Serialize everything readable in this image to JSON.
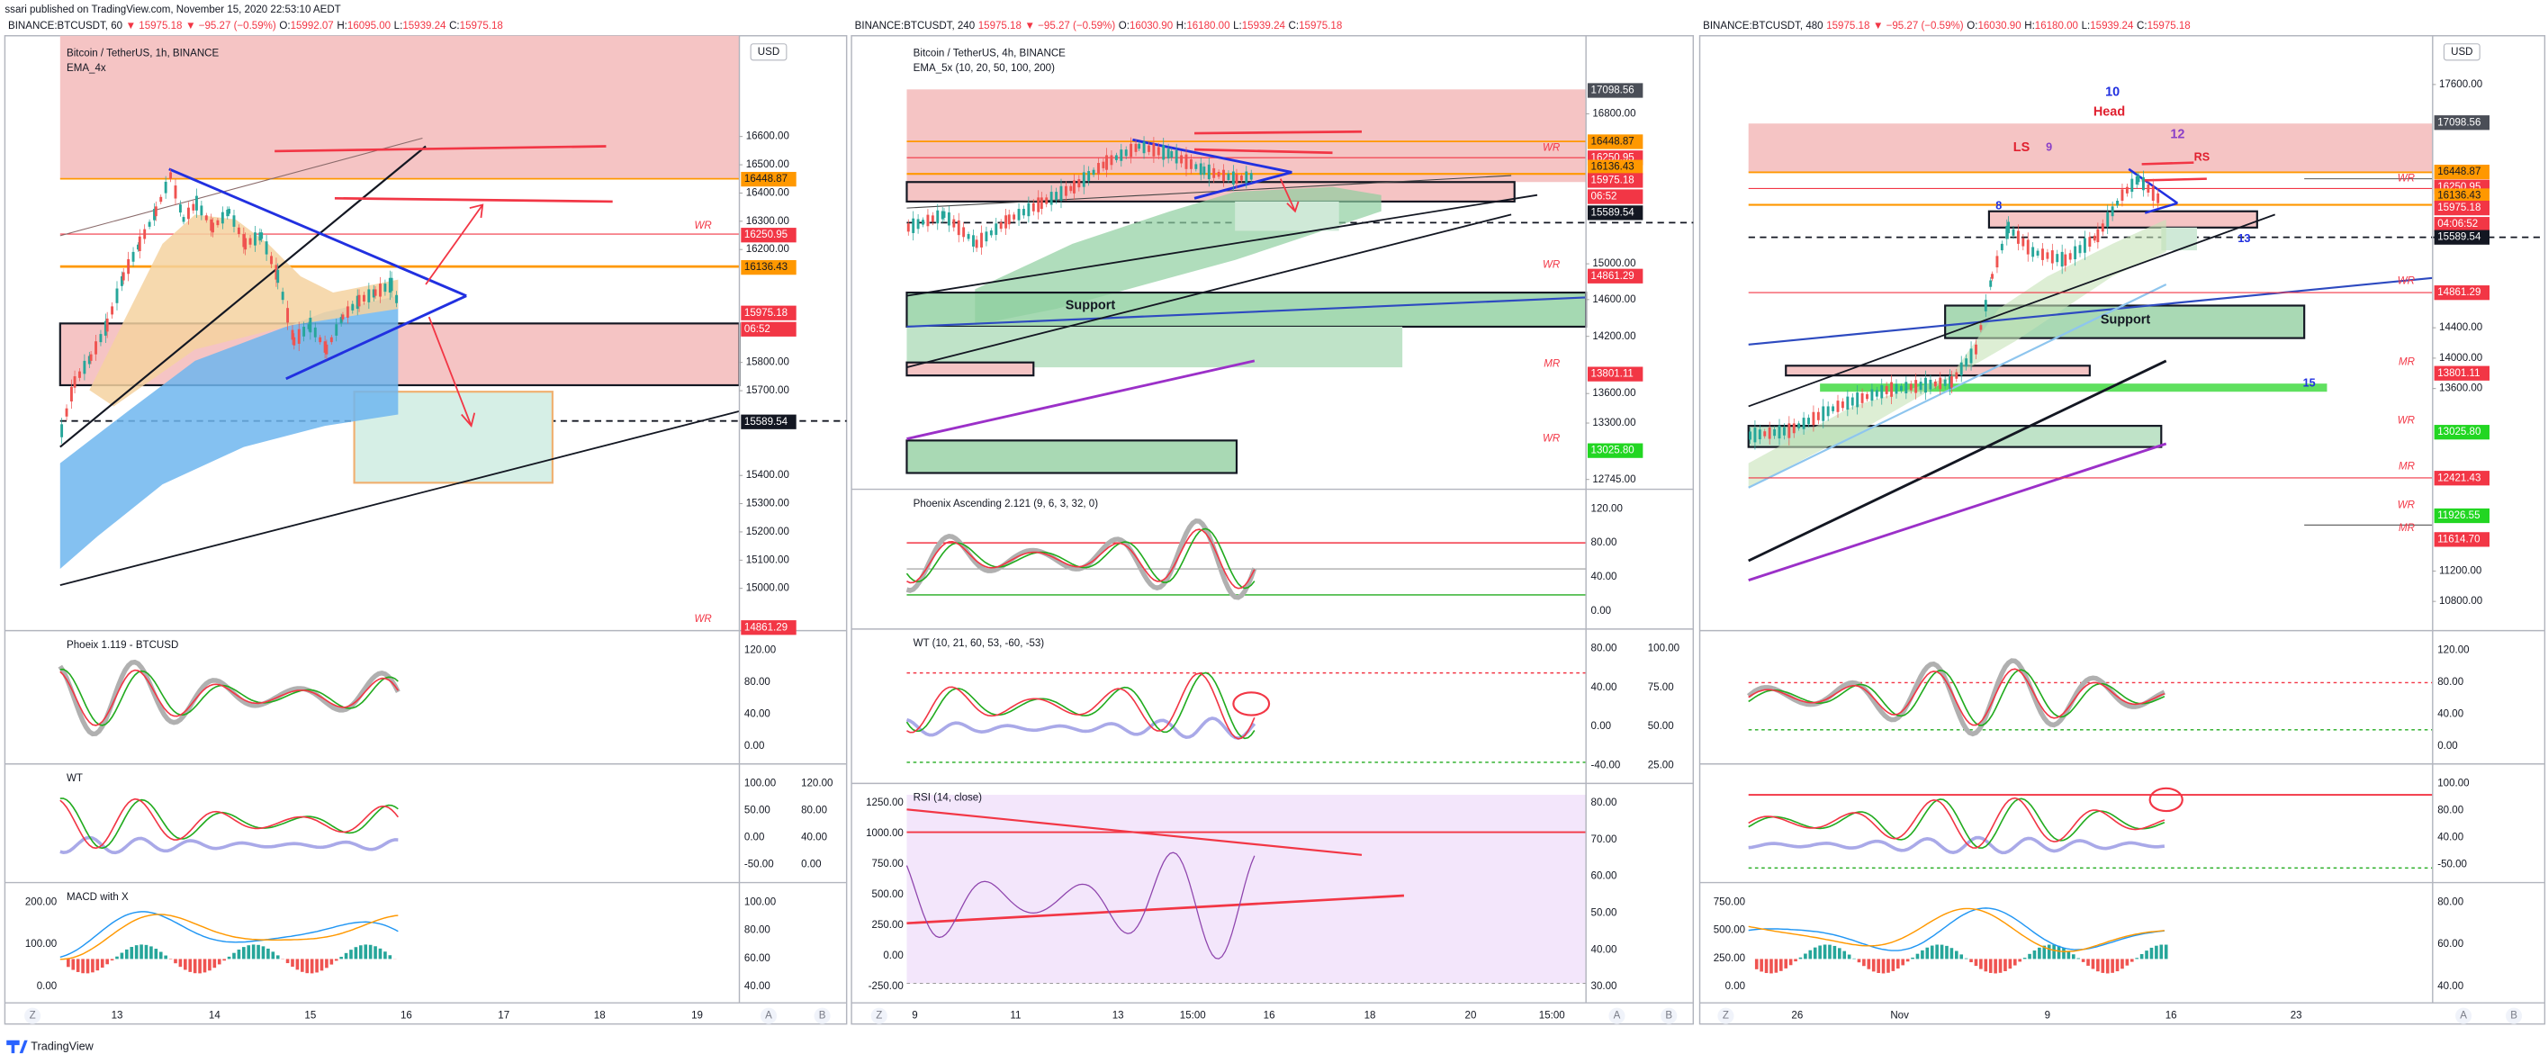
{
  "header": {
    "published": "ssari published on TradingView.com, November 15, 2020 22:53:10 AEDT"
  },
  "panels": [
    {
      "symbol": "BINANCE:BTCUSDT, 60",
      "price": "▼ 15975.18",
      "change": "▼ −95.27 (−0.59%)",
      "ohlc": [
        [
          "O:",
          "15992.07"
        ],
        [
          "H:",
          "16095.00"
        ],
        [
          "L:",
          "15939.24"
        ],
        [
          "C:",
          "15975.18"
        ]
      ],
      "legend": [
        "Bitcoin / TetherUS, 1h, BINANCE",
        "EMA_4x"
      ],
      "currency": "USD",
      "ticks": [
        {
          "value": 16600,
          "label": "16600.00"
        },
        {
          "value": 16500,
          "label": "16500.00"
        },
        {
          "value": 16400,
          "label": "16400.00"
        },
        {
          "value": 16300,
          "label": "16300.00"
        },
        {
          "value": 16200,
          "label": "16200.00"
        },
        {
          "value": 15800,
          "label": "15800.00"
        },
        {
          "value": 15700,
          "label": "15700.00"
        },
        {
          "value": 15400,
          "label": "15400.00"
        },
        {
          "value": 15300,
          "label": "15300.00"
        },
        {
          "value": 15200,
          "label": "15200.00"
        },
        {
          "value": 15100,
          "label": "15100.00"
        },
        {
          "value": 15000,
          "label": "15000.00"
        }
      ],
      "log_scale": false,
      "tags": [
        {
          "value": 16448.87,
          "label": "16448.87",
          "color": "#ff9800"
        },
        {
          "value": 16250.95,
          "label": "16250.95",
          "color": "#f23645"
        },
        {
          "value": 16136.43,
          "label": "16136.43",
          "color": "#ff9800"
        },
        {
          "value": 15975.18,
          "label": "15975.18",
          "color": "#f23645",
          "countdown": "06:52"
        },
        {
          "value": 15589.54,
          "label": "15589.54",
          "color": "#131722"
        },
        {
          "value": 14861.29,
          "label": "14861.29",
          "color": "#f23645"
        }
      ],
      "level_labels": [
        "WR",
        "WR"
      ],
      "annotations": [],
      "subpanes": [
        {
          "title": "Phoeix 1.119 - BTCUSD",
          "ticks": [
            "120.00",
            "80.00",
            "40.00",
            "0.00"
          ]
        },
        {
          "title": "WT",
          "ticks": [
            "100.00",
            "50.00",
            "0.00",
            "-50.00"
          ],
          "ticks_2": [
            "120.00",
            "80.00",
            "40.00",
            "0.00"
          ]
        },
        {
          "title": "MACD with X",
          "inner_ticks": [
            "200.00",
            "100.00",
            "0.00"
          ],
          "ticks": [
            "100.00",
            "80.00",
            "60.00",
            "40.00"
          ]
        }
      ],
      "xticks": [
        13,
        14,
        15,
        16,
        17,
        18,
        19
      ],
      "corners": [
        "Z",
        "A",
        "B"
      ]
    },
    {
      "symbol": "BINANCE:BTCUSDT, 240",
      "price": "15975.18",
      "change": "▼ −95.27 (−0.59%)",
      "ohlc": [
        [
          "O:",
          "16030.90"
        ],
        [
          "H:",
          "16180.00"
        ],
        [
          "L:",
          "15939.24"
        ],
        [
          "C:",
          "15975.18"
        ]
      ],
      "legend": [
        "Bitcoin / TetherUS, 4h, BINANCE",
        "EMA_5x (10, 20, 50, 100, 200)"
      ],
      "ticks": [
        {
          "value": 16800,
          "label": "16800.00"
        },
        {
          "value": 15000,
          "label": "15000.00"
        },
        {
          "value": 14600,
          "label": "14600.00"
        },
        {
          "value": 14200,
          "label": "14200.00"
        },
        {
          "value": 13600,
          "label": "13600.00"
        },
        {
          "value": 13300,
          "label": "13300.00"
        },
        {
          "value": 12745,
          "label": "12745.00"
        }
      ],
      "log_scale": true,
      "tags": [
        {
          "value": 17098.56,
          "label": "17098.56",
          "color": "#4a4e57"
        },
        {
          "value": 16448.87,
          "label": "16448.87",
          "color": "#ff9800"
        },
        {
          "value": 16250.95,
          "label": "16250.95",
          "color": "#f23645"
        },
        {
          "value": 16136.43,
          "label": "16136.43",
          "color": "#ff9800"
        },
        {
          "value": 15975.18,
          "label": "15975.18",
          "color": "#f23645",
          "countdown": "06:52"
        },
        {
          "value": 15589.54,
          "label": "15589.54",
          "color": "#131722"
        },
        {
          "value": 14861.29,
          "label": "14861.29",
          "color": "#f23645"
        },
        {
          "value": 13801.11,
          "label": "13801.11",
          "color": "#f23645"
        },
        {
          "value": 13025.8,
          "label": "13025.80",
          "color": "#22d622"
        }
      ],
      "level_labels": [
        "WR",
        "WR",
        "MR",
        "WR"
      ],
      "annotations": [
        "Support"
      ],
      "subpanes": [
        {
          "title": "Phoenix Ascending 2.121 (9, 6, 3, 32, 0)",
          "ticks": [
            "120.00",
            "80.00",
            "40.00",
            "0.00"
          ]
        },
        {
          "title": "WT (10, 21, 60, 53, -60, -53)",
          "ticks": [
            "80.00",
            "40.00",
            "0.00",
            "-40.00"
          ],
          "ticks_2": [
            "100.00",
            "75.00",
            "50.00",
            "25.00"
          ]
        },
        {
          "title": "RSI (14, close)",
          "inner_ticks": [
            "1250.00",
            "1000.00",
            "750.00",
            "500.00",
            "250.00",
            "0.00",
            "-250.00"
          ],
          "ticks": [
            "80.00",
            "70.00",
            "60.00",
            "50.00",
            "40.00",
            "30.00"
          ]
        }
      ],
      "xticks": [
        9,
        11,
        13,
        "15:00",
        16,
        18,
        20,
        "15:00"
      ],
      "corners": [
        "Z",
        "A",
        "B"
      ]
    },
    {
      "symbol": "BINANCE:BTCUSDT, 480",
      "price": "15975.18",
      "change": "▼ −95.27 (−0.59%)",
      "ohlc": [
        [
          "O:",
          "16030.90"
        ],
        [
          "H:",
          "16180.00"
        ],
        [
          "L:",
          "15939.24"
        ],
        [
          "C:",
          "15975.18"
        ]
      ],
      "legend": [],
      "currency": "USD",
      "ticks": [
        {
          "value": 17600,
          "label": "17600.00"
        },
        {
          "value": 14400,
          "label": "14400.00"
        },
        {
          "value": 14000,
          "label": "14000.00"
        },
        {
          "value": 13600,
          "label": "13600.00"
        },
        {
          "value": 11200,
          "label": "11200.00"
        },
        {
          "value": 10800,
          "label": "10800.00"
        }
      ],
      "log_scale": false,
      "tags": [
        {
          "value": 17098.56,
          "label": "17098.56",
          "color": "#4a4e57"
        },
        {
          "value": 16448.87,
          "label": "16448.87",
          "color": "#ff9800"
        },
        {
          "value": 16250.95,
          "label": "16250.95",
          "color": "#f23645"
        },
        {
          "value": 16136.43,
          "label": "16136.43",
          "color": "#ff9800"
        },
        {
          "value": 15975.18,
          "label": "15975.18",
          "color": "#f23645",
          "countdown": "04:06:52"
        },
        {
          "value": 15589.54,
          "label": "15589.54",
          "color": "#131722"
        },
        {
          "value": 14861.29,
          "label": "14861.29",
          "color": "#f23645"
        },
        {
          "value": 13801.11,
          "label": "13801.11",
          "color": "#f23645"
        },
        {
          "value": 13025.8,
          "label": "13025.80",
          "color": "#22d622"
        },
        {
          "value": 12421.43,
          "label": "12421.43",
          "color": "#f23645"
        },
        {
          "value": 11926.55,
          "label": "11926.55",
          "color": "#22d622"
        },
        {
          "value": 11614.7,
          "label": "11614.70",
          "color": "#f23645"
        }
      ],
      "level_labels": [
        "WR",
        "WR",
        "MR",
        "WR",
        "MR",
        "WR",
        "MR"
      ],
      "annotations": [
        "10",
        "Head",
        "12",
        "LS",
        "9",
        "RS",
        "8",
        "13",
        "Support",
        "15"
      ],
      "subpanes": [
        {
          "ticks": [
            "120.00",
            "80.00",
            "40.00",
            "0.00"
          ]
        },
        {
          "ticks": [
            "100.00",
            "80.00",
            "40.00",
            "-50.00"
          ]
        },
        {
          "inner_ticks": [
            "750.00",
            "500.00",
            "250.00",
            "0.00"
          ],
          "ticks": [
            "80.00",
            "60.00",
            "40.00"
          ]
        }
      ],
      "xticks": [
        26,
        "Nov",
        9,
        16,
        23
      ],
      "corners": [
        "Z",
        "A",
        "B"
      ]
    }
  ],
  "footer": {
    "brand": "TradingView"
  }
}
